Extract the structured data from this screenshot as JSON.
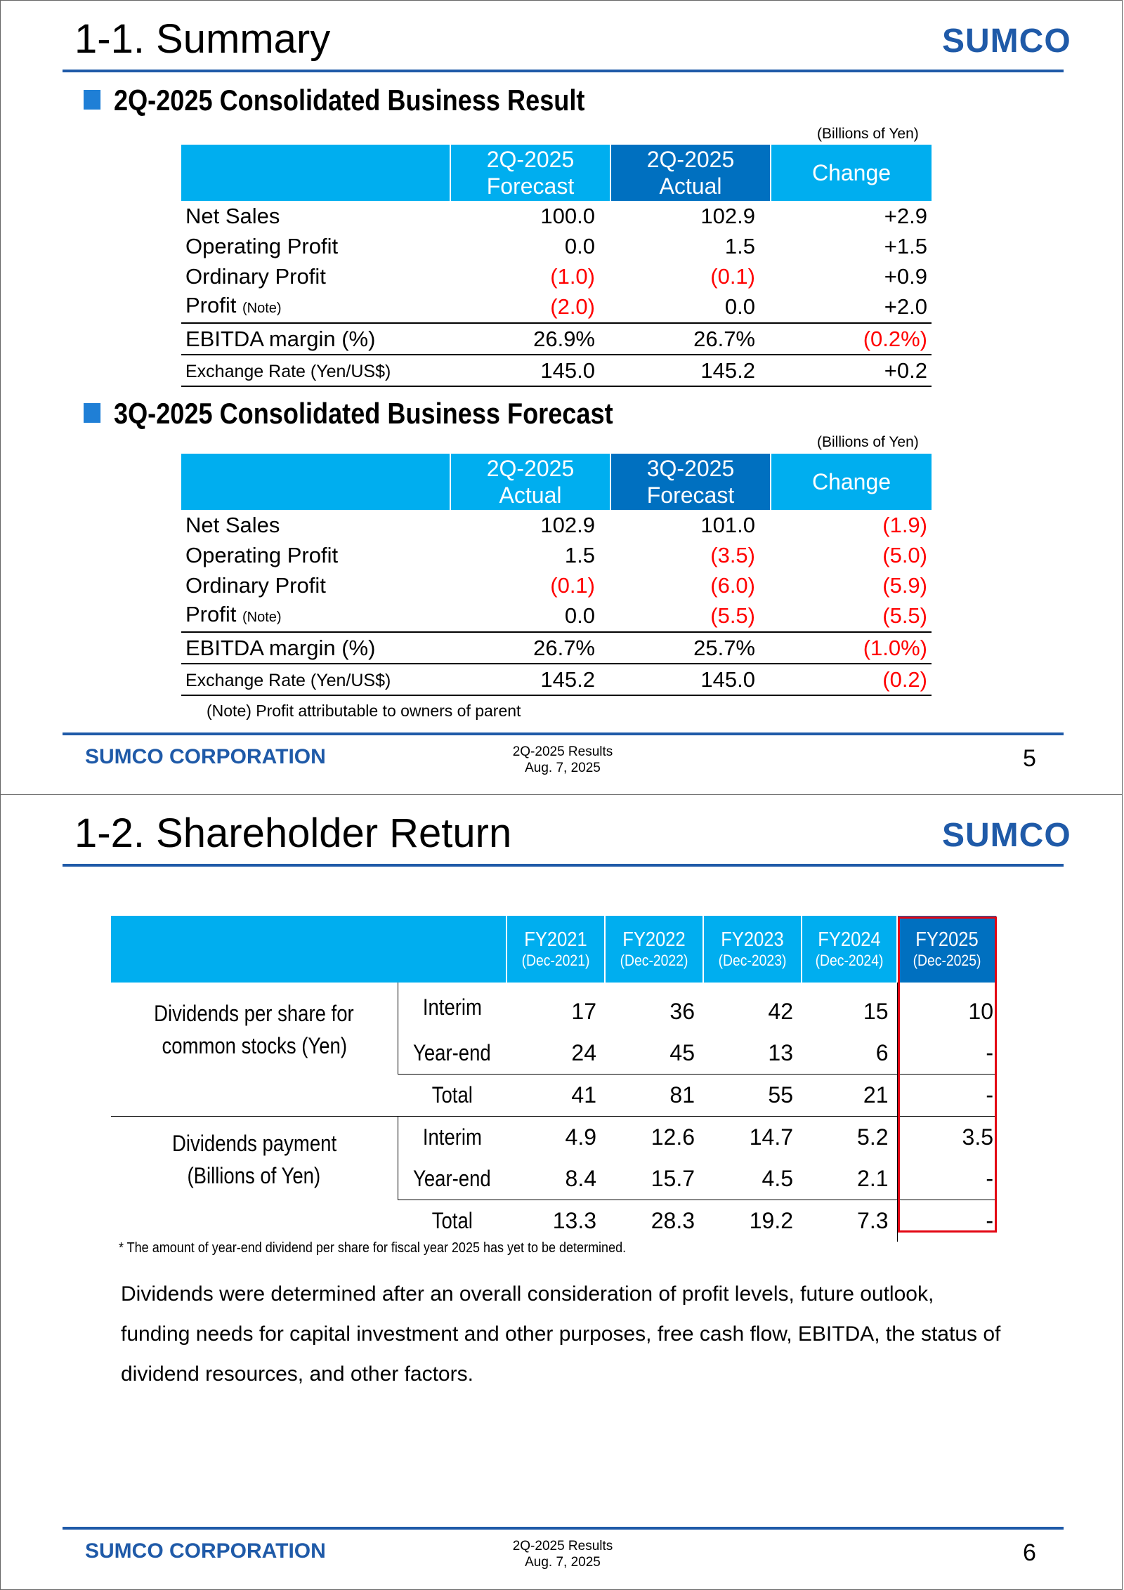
{
  "slide1": {
    "title": "1-1. Summary",
    "logo_text": "SUMCO",
    "section1": {
      "heading": "2Q-2025 Consolidated Business Result",
      "unit": "(Billions of Yen)",
      "headers": [
        "2Q-2025\nForecast",
        "2Q-2025\nActual",
        "Change"
      ],
      "header_lines": [
        [
          "2Q-2025",
          "Forecast"
        ],
        [
          "2Q-2025",
          "Actual"
        ],
        [
          "Change"
        ]
      ],
      "rows": [
        {
          "label": "Net Sales",
          "note": "",
          "values": [
            "100.0",
            "102.9",
            "+2.9"
          ],
          "neg": [
            false,
            false,
            false
          ]
        },
        {
          "label": "Operating Profit",
          "note": "",
          "values": [
            "0.0",
            "1.5",
            "+1.5"
          ],
          "neg": [
            false,
            false,
            false
          ]
        },
        {
          "label": "Ordinary Profit",
          "note": "",
          "values": [
            "(1.0)",
            "(0.1)",
            "+0.9"
          ],
          "neg": [
            true,
            true,
            false
          ]
        },
        {
          "label": "Profit",
          "note": "(Note)",
          "values": [
            "(2.0)",
            "0.0",
            "+2.0"
          ],
          "neg": [
            true,
            false,
            false
          ]
        },
        {
          "label": "EBITDA margin (%)",
          "note": "",
          "values": [
            "26.9%",
            "26.7%",
            "(0.2%)"
          ],
          "neg": [
            false,
            false,
            true
          ]
        },
        {
          "label": "Exchange Rate (Yen/US$)",
          "note": "",
          "values": [
            "145.0",
            "145.2",
            "+0.2"
          ],
          "neg": [
            false,
            false,
            false
          ]
        }
      ]
    },
    "section2": {
      "heading": "3Q-2025 Consolidated Business Forecast",
      "unit": "(Billions of Yen)",
      "header_lines": [
        [
          "2Q-2025",
          "Actual"
        ],
        [
          "3Q-2025",
          "Forecast"
        ],
        [
          "Change"
        ]
      ],
      "rows": [
        {
          "label": "Net Sales",
          "note": "",
          "values": [
            "102.9",
            "101.0",
            "(1.9)"
          ],
          "neg": [
            false,
            false,
            true
          ]
        },
        {
          "label": "Operating Profit",
          "note": "",
          "values": [
            "1.5",
            "(3.5)",
            "(5.0)"
          ],
          "neg": [
            false,
            true,
            true
          ]
        },
        {
          "label": "Ordinary Profit",
          "note": "",
          "values": [
            "(0.1)",
            "(6.0)",
            "(5.9)"
          ],
          "neg": [
            true,
            true,
            true
          ]
        },
        {
          "label": "Profit",
          "note": "(Note)",
          "values": [
            "0.0",
            "(5.5)",
            "(5.5)"
          ],
          "neg": [
            false,
            true,
            true
          ]
        },
        {
          "label": "EBITDA margin (%)",
          "note": "",
          "values": [
            "26.7%",
            "25.7%",
            "(1.0%)"
          ],
          "neg": [
            false,
            false,
            true
          ]
        },
        {
          "label": "Exchange Rate (Yen/US$)",
          "note": "",
          "values": [
            "145.2",
            "145.0",
            "(0.2)"
          ],
          "neg": [
            false,
            false,
            true
          ]
        }
      ]
    },
    "note": "(Note) Profit attributable to owners of parent",
    "footer": {
      "company": "SUMCO CORPORATION",
      "line1": "2Q-2025 Results",
      "line2": "Aug. 7, 2025",
      "page": "5"
    }
  },
  "slide2": {
    "title": "1-2. Shareholder Return",
    "logo_text": "SUMCO",
    "years": [
      {
        "fy": "FY2021",
        "dec": "(Dec-2021)"
      },
      {
        "fy": "FY2022",
        "dec": "(Dec-2022)"
      },
      {
        "fy": "FY2023",
        "dec": "(Dec-2023)"
      },
      {
        "fy": "FY2024",
        "dec": "(Dec-2024)"
      },
      {
        "fy": "FY2025",
        "dec": "(Dec-2025)"
      }
    ],
    "groups": [
      {
        "label_lines": [
          "Dividends per share for",
          "common stocks (Yen)"
        ],
        "rows": [
          {
            "sub": "Interim",
            "values": [
              "17",
              "36",
              "42",
              "15",
              "10"
            ]
          },
          {
            "sub": "Year-end",
            "values": [
              "24",
              "45",
              "13",
              "6",
              "-"
            ]
          },
          {
            "sub": "Total",
            "values": [
              "41",
              "81",
              "55",
              "21",
              "-"
            ]
          }
        ]
      },
      {
        "label_lines": [
          "Dividends payment",
          "(Billions of Yen)"
        ],
        "rows": [
          {
            "sub": "Interim",
            "values": [
              "4.9",
              "12.6",
              "14.7",
              "5.2",
              "3.5"
            ]
          },
          {
            "sub": "Year-end",
            "values": [
              "8.4",
              "15.7",
              "4.5",
              "2.1",
              "-"
            ]
          },
          {
            "sub": "Total",
            "values": [
              "13.3",
              "28.3",
              "19.2",
              "7.3",
              "-"
            ]
          }
        ]
      }
    ],
    "asterisk_note": "* The amount of year-end dividend per share for fiscal year 2025 has yet to be determined.",
    "paragraph": "Dividends were determined after an overall consideration of profit levels, future outlook, funding needs for capital investment and other purposes, free cash flow, EBITDA, the status of dividend resources, and other factors.",
    "footer": {
      "company": "SUMCO CORPORATION",
      "line1": "2Q-2025 Results",
      "line2": "Aug. 7, 2025",
      "page": "6"
    }
  },
  "colors": {
    "brand_blue": "#1f5aa8",
    "header_cyan": "#00aeef",
    "header_dark": "#0070c0",
    "negative_red": "#ff0000",
    "highlight_red": "#e30613"
  }
}
